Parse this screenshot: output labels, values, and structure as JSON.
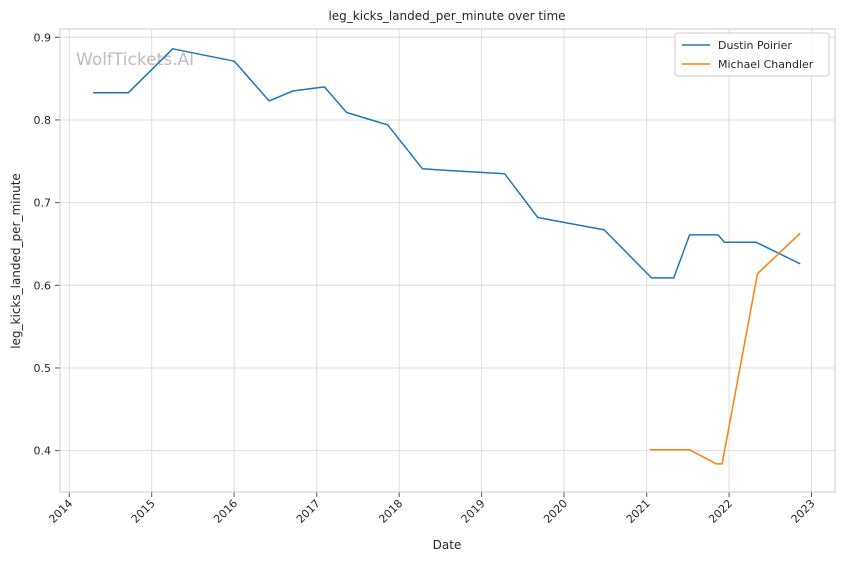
{
  "chart_data": {
    "type": "line",
    "title": "leg_kicks_landed_per_minute over time",
    "xlabel": "Date",
    "ylabel": "leg_kicks_landed_per_minute",
    "watermark": "WolfTickets.AI",
    "x_ticks": [
      "2014",
      "2015",
      "2016",
      "2017",
      "2018",
      "2019",
      "2020",
      "2021",
      "2022",
      "2023"
    ],
    "y_ticks": [
      "0.4",
      "0.5",
      "0.6",
      "0.7",
      "0.8",
      "0.9"
    ],
    "xlim": [
      "2013-11-21",
      "2023-04-15"
    ],
    "ylim": [
      0.35,
      0.91
    ],
    "grid": true,
    "legend_position": "top-right",
    "series": [
      {
        "name": "Dustin Poirier",
        "color": "#1f77b4",
        "points": [
          [
            "2014-04-16",
            0.833
          ],
          [
            "2014-09-20",
            0.833
          ],
          [
            "2015-04-04",
            0.886
          ],
          [
            "2016-01-02",
            0.871
          ],
          [
            "2016-06-04",
            0.823
          ],
          [
            "2016-09-17",
            0.835
          ],
          [
            "2017-02-04",
            0.84
          ],
          [
            "2017-05-13",
            0.809
          ],
          [
            "2017-11-11",
            0.794
          ],
          [
            "2018-04-14",
            0.741
          ],
          [
            "2018-07-28",
            0.739
          ],
          [
            "2019-04-13",
            0.735
          ],
          [
            "2019-09-07",
            0.682
          ],
          [
            "2020-06-27",
            0.667
          ],
          [
            "2021-01-23",
            0.609
          ],
          [
            "2021-05-01",
            0.609
          ],
          [
            "2021-07-10",
            0.661
          ],
          [
            "2021-11-13",
            0.661
          ],
          [
            "2021-12-11",
            0.652
          ],
          [
            "2022-05-01",
            0.652
          ],
          [
            "2022-11-12",
            0.626
          ]
        ]
      },
      {
        "name": "Michael Chandler",
        "color": "#ff7f0e",
        "points": [
          [
            "2021-01-16",
            0.401
          ],
          [
            "2021-07-10",
            0.401
          ],
          [
            "2021-11-06",
            0.384
          ],
          [
            "2021-12-01",
            0.384
          ],
          [
            "2022-05-07",
            0.614
          ],
          [
            "2022-11-12",
            0.663
          ]
        ]
      }
    ]
  }
}
